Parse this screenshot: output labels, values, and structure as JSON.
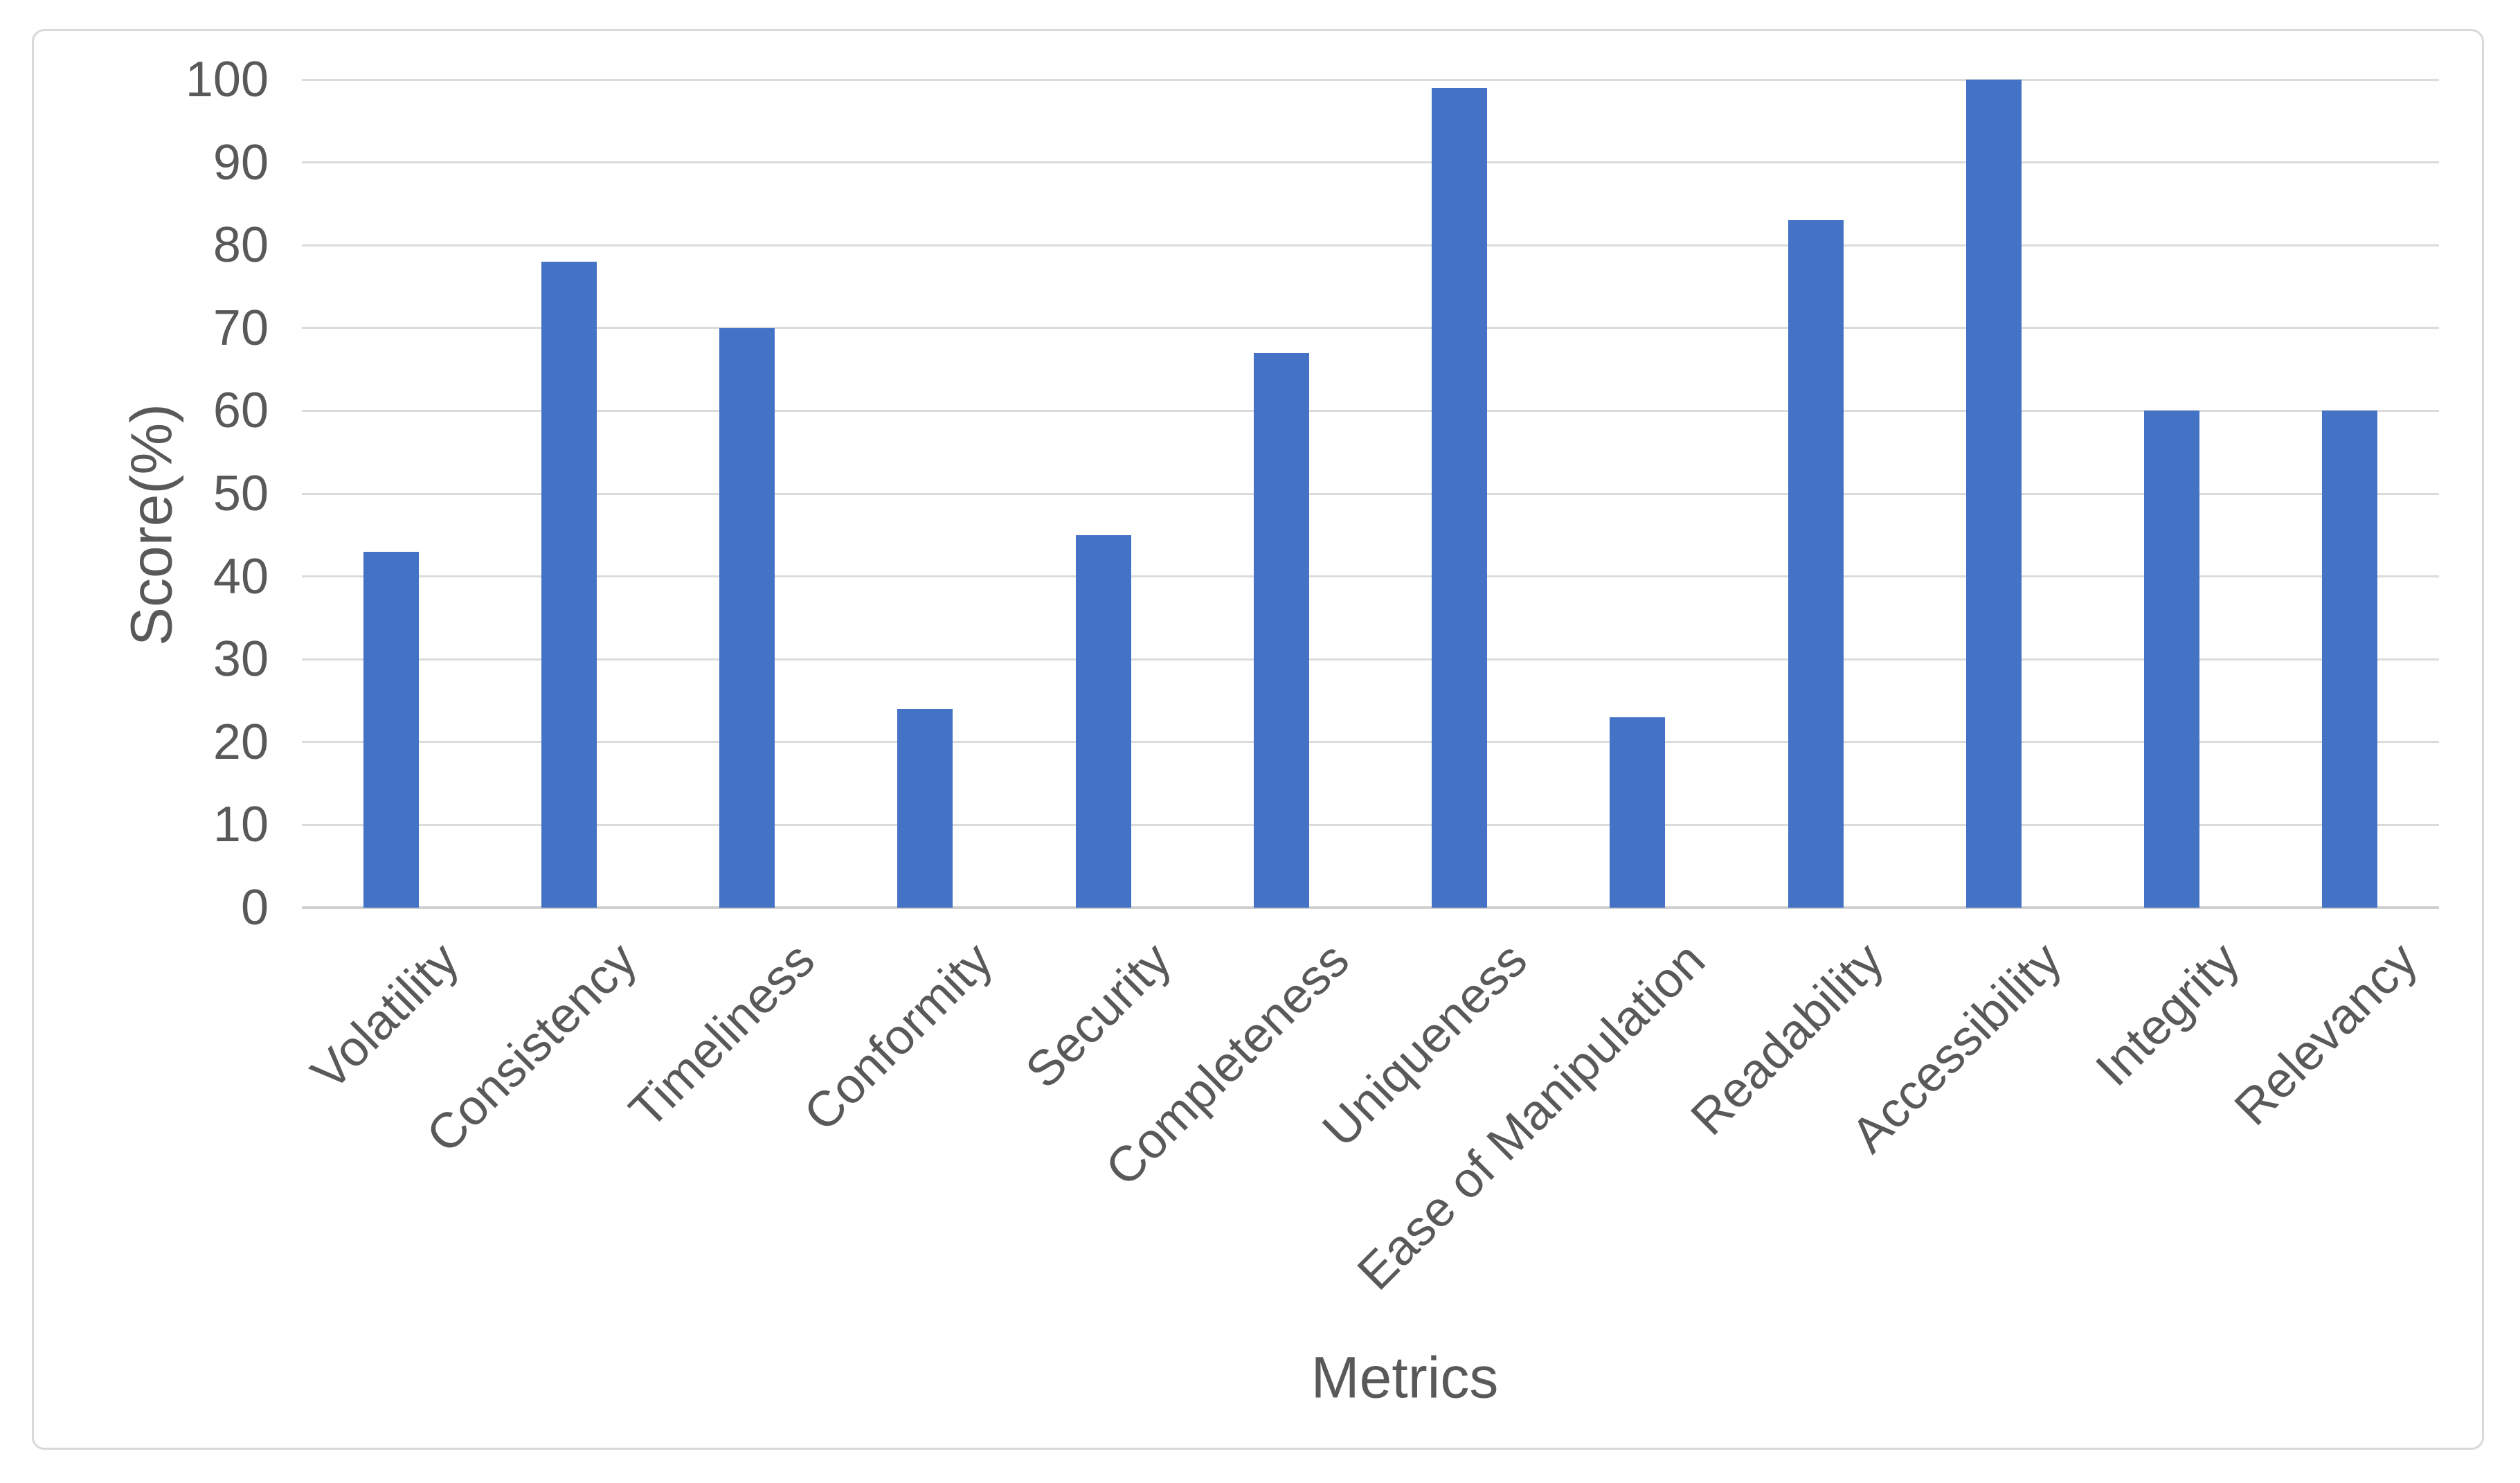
{
  "chart_data": {
    "type": "bar",
    "title": "",
    "categories": [
      "Volatility",
      "Consistency",
      "Timeliness",
      "Conformity",
      "Security",
      "Completeness",
      "Uniqueness",
      "Ease of Manipulation",
      "Readability",
      "Accessibility",
      "Integrity",
      "Relevancy"
    ],
    "values": [
      43,
      78,
      70,
      24,
      45,
      67,
      99,
      23,
      83,
      100,
      60,
      60
    ],
    "xlabel": "Metrics",
    "ylabel": "Score(%)",
    "ylim": [
      0,
      100
    ],
    "yticks": [
      0,
      10,
      20,
      30,
      40,
      50,
      60,
      70,
      80,
      90,
      100
    ],
    "grid": "horizontal",
    "legend_position": "none",
    "series_name": ""
  },
  "colors": {
    "bar": "#4472C4",
    "gridline": "#DBDBDB",
    "axis_line": "#CFCFCF",
    "text": "#595959",
    "frame_border": "#D9D9D9",
    "background": "#FFFFFF"
  }
}
